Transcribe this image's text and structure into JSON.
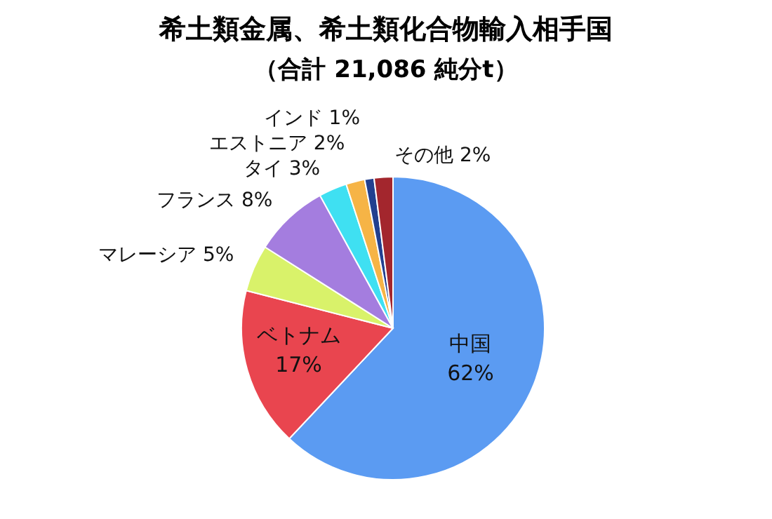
{
  "chart_data": {
    "type": "pie",
    "title": "希土類金属、希土類化合物輸入相手国",
    "subtitle": "（合計 21,086 純分t）",
    "categories": [
      "中国",
      "ベトナム",
      "マレーシア",
      "フランス",
      "タイ",
      "エストニア",
      "インド",
      "その他"
    ],
    "values": [
      62,
      17,
      5,
      8,
      3,
      2,
      1,
      2
    ],
    "value_labels": [
      "62%",
      "17%",
      "5%",
      "8%",
      "3%",
      "2%",
      "1%",
      "2%"
    ],
    "colors": [
      "#5b9bf2",
      "#e9454f",
      "#d9f26a",
      "#a47ddf",
      "#3fe0f2",
      "#f6b446",
      "#22408f",
      "#a3262d"
    ]
  }
}
